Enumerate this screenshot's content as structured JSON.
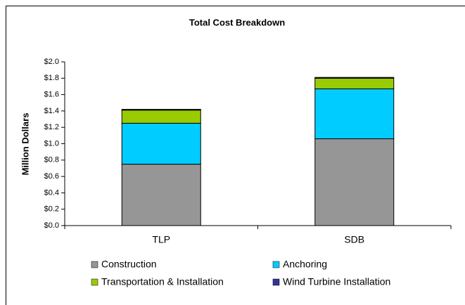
{
  "chart_data": {
    "type": "stacked-bar",
    "title": "Total Cost Breakdown",
    "y_label": "Million Dollars",
    "categories": [
      "TLP",
      "SDB"
    ],
    "series": [
      {
        "name": "Construction",
        "color": "#969696",
        "values": [
          0.75,
          1.06
        ]
      },
      {
        "name": "Anchoring",
        "color": "#00ccff",
        "values": [
          0.5,
          0.61
        ]
      },
      {
        "name": "Transportation & Installation",
        "color": "#99cc00",
        "values": [
          0.16,
          0.13
        ]
      },
      {
        "name": "Wind Turbine Installation",
        "color": "#333399",
        "values": [
          0.01,
          0.01
        ]
      }
    ],
    "ylim": [
      0,
      2
    ],
    "yticks": [
      {
        "value": 0,
        "label": "$0.0"
      },
      {
        "value": 0.2,
        "label": "$0.2"
      },
      {
        "value": 0.4,
        "label": "$0.4"
      },
      {
        "value": 0.6,
        "label": "$0.6"
      },
      {
        "value": 0.8,
        "label": "$0.8"
      },
      {
        "value": 1,
        "label": "$1.0"
      },
      {
        "value": 1.2,
        "label": "$1.2"
      },
      {
        "value": 1.4,
        "label": "$1.4"
      },
      {
        "value": 1.6,
        "label": "$1.6"
      },
      {
        "value": 1.8,
        "label": "$1.8"
      },
      {
        "value": 2,
        "label": "$2.0"
      }
    ],
    "grid": false
  }
}
